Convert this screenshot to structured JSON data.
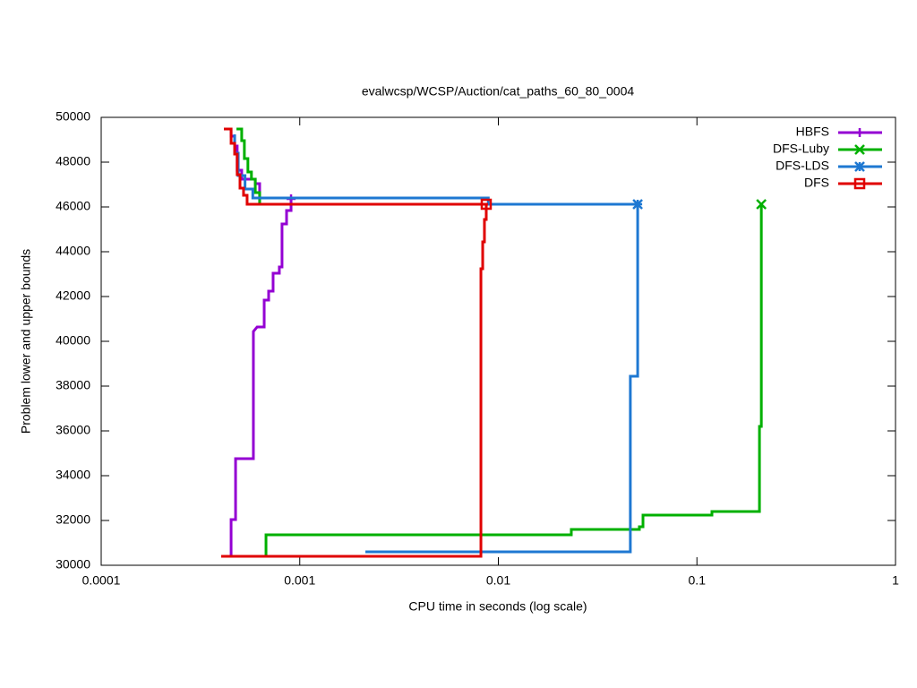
{
  "chart_data": {
    "type": "line",
    "title": "evalwcsp/WCSP/Auction/cat_paths_60_80_0004",
    "x_label": "CPU time in seconds (log scale)",
    "y_label": "Problem lower and upper bounds",
    "x_scale": "log",
    "xlim": [
      0.0001,
      1
    ],
    "xticks": [
      0.0001,
      0.001,
      0.01,
      0.1,
      1
    ],
    "ylim": [
      30000,
      50000
    ],
    "yticks": [
      30000,
      32000,
      34000,
      36000,
      38000,
      40000,
      42000,
      44000,
      46000,
      48000,
      50000
    ],
    "legend": "top-right",
    "series": [
      {
        "name": "HBFS",
        "color": "#9400d3",
        "marker": "plus",
        "x": [
          0.000415,
          0.000451,
          0.000451,
          0.00047,
          0.00047,
          0.000484,
          0.000484,
          0.00051,
          0.00051,
          0.000597,
          0.000597,
          0.000628,
          0.000628,
          null,
          0.000451,
          0.000451,
          0.000475,
          0.000475,
          0.000584,
          0.000584,
          0.00061,
          0.000662,
          0.000662,
          0.000697,
          0.000697,
          0.000734,
          0.000734,
          0.000789,
          0.000789,
          0.000814,
          0.000814,
          0.000858,
          0.000858,
          0.000904,
          0.000904
        ],
        "values": [
          49480,
          49480,
          49160,
          49160,
          48720,
          48720,
          47640,
          47640,
          47240,
          47240,
          47040,
          47040,
          46120,
          null,
          30400,
          32040,
          32040,
          34760,
          34760,
          40440,
          40640,
          40640,
          41840,
          41840,
          42240,
          42240,
          43040,
          43040,
          43320,
          43320,
          45240,
          45240,
          45840,
          45840,
          46360
        ]
      },
      {
        "name": "DFS-Luby",
        "color": "#00b000",
        "marker": "cross",
        "x": [
          0.00048,
          0.00051,
          0.00051,
          0.000526,
          0.000526,
          0.000548,
          0.000548,
          0.000571,
          0.000571,
          0.000597,
          0.000597,
          0.000628,
          0.000628,
          null,
          0.000676,
          0.000676,
          0.0233,
          0.0233,
          0.0513,
          0.0513,
          0.0535,
          0.0535,
          0.119,
          0.119,
          0.2065,
          0.2065,
          0.211,
          0.211
        ],
        "values": [
          49480,
          49480,
          48960,
          48960,
          48160,
          48160,
          47560,
          47560,
          47240,
          47240,
          46640,
          46640,
          46120,
          null,
          30400,
          31360,
          31360,
          31600,
          31600,
          31720,
          31720,
          32240,
          32240,
          32400,
          32400,
          36200,
          36200,
          46120
        ]
      },
      {
        "name": "DFS-LDS",
        "color": "#1e78d2",
        "marker": "star",
        "x": [
          0.00047,
          0.00047,
          0.00049,
          0.00049,
          0.00053,
          0.00053,
          0.00058,
          0.00058,
          0.0089,
          0.0089,
          0.0505,
          null,
          0.00214,
          0.0462,
          0.0462,
          0.0503,
          0.0503
        ],
        "values": [
          49240,
          48400,
          48400,
          47400,
          47400,
          46800,
          46800,
          46400,
          46400,
          46120,
          46120,
          null,
          30600,
          30600,
          38440,
          38440,
          46120
        ]
      },
      {
        "name": "DFS",
        "color": "#e00000",
        "marker": "square",
        "x": [
          0.000415,
          0.000451,
          0.000451,
          0.00047,
          0.00047,
          0.000484,
          0.000484,
          0.0005,
          0.0005,
          0.000521,
          0.000521,
          0.000543,
          0.000543,
          0.00888,
          null,
          0.000402,
          0.00817,
          0.00817,
          0.00834,
          0.00834,
          0.00851,
          0.00851,
          0.00869,
          0.00869
        ],
        "values": [
          49480,
          49480,
          48840,
          48840,
          48360,
          48360,
          47440,
          47440,
          46840,
          46840,
          46520,
          46520,
          46120,
          46120,
          null,
          30400,
          30400,
          43240,
          43240,
          44440,
          44440,
          45440,
          45440,
          46120
        ]
      }
    ]
  }
}
